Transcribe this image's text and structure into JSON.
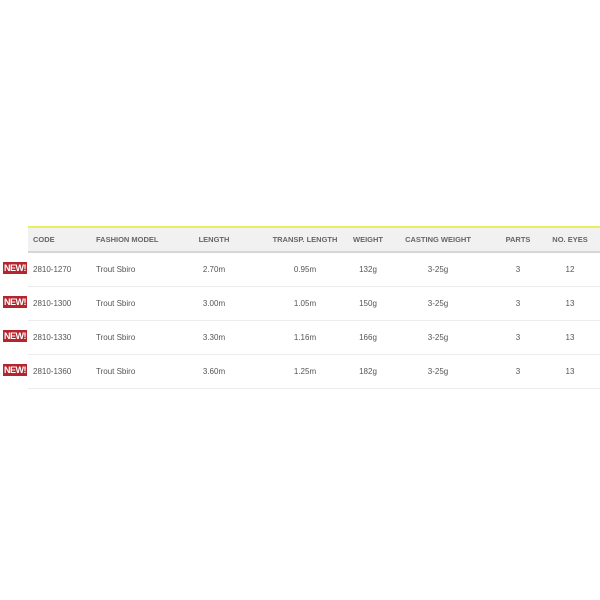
{
  "table": {
    "headers": [
      "CODE",
      "FASHION MODEL",
      "LENGTH",
      "TRANSP. LENGTH",
      "WEIGHT",
      "CASTING WEIGHT",
      "PARTS",
      "NO. EYES"
    ],
    "badge": "NEW!",
    "rows": [
      [
        "2810-1270",
        "Trout Sbiro",
        "2.70m",
        "0.95m",
        "132g",
        "3-25g",
        "3",
        "12"
      ],
      [
        "2810-1300",
        "Trout Sbiro",
        "3.00m",
        "1.05m",
        "150g",
        "3-25g",
        "3",
        "13"
      ],
      [
        "2810-1330",
        "Trout Sbiro",
        "3.30m",
        "1.16m",
        "166g",
        "3-25g",
        "3",
        "13"
      ],
      [
        "2810-1360",
        "Trout Sbiro",
        "3.60m",
        "1.25m",
        "182g",
        "3-25g",
        "3",
        "13"
      ]
    ],
    "colors": {
      "accent_line": "#e8ef5a",
      "badge": "#b3262e",
      "header_bg": "#f1f1f1"
    }
  }
}
